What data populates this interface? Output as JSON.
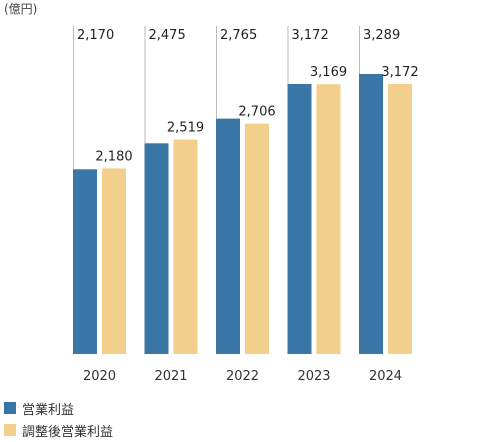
{
  "chart_data": {
    "type": "bar",
    "unit_label": "(億円)",
    "categories": [
      "2020",
      "2021",
      "2022",
      "2023",
      "2024"
    ],
    "series": [
      {
        "name": "営業利益",
        "values": [
          2170,
          2475,
          2765,
          3172,
          3289
        ],
        "labels": [
          "2,170",
          "2,475",
          "2,765",
          "3,172",
          "3,289"
        ]
      },
      {
        "name": "調整後営業利益",
        "values": [
          2180,
          2519,
          2706,
          3169,
          3172
        ],
        "labels": [
          "2,180",
          "2,519",
          "2,706",
          "3,169",
          "3,172"
        ]
      }
    ],
    "colors": [
      "#3a77a6",
      "#f2cf8a"
    ],
    "ylim": [
      0,
      3500
    ],
    "grid": false
  }
}
